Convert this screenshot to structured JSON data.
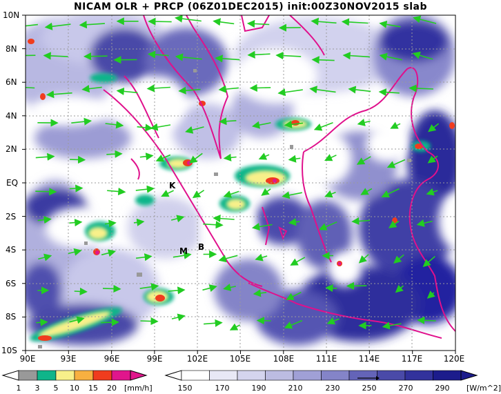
{
  "title": "NICAM OLR + PRCP (06Z01DEC2015) init:00Z30NOV2015 slab",
  "map": {
    "lon_range": [
      90,
      120
    ],
    "lat_range": [
      -10,
      10
    ],
    "x_ticks": [
      "90E",
      "93E",
      "96E",
      "99E",
      "102E",
      "105E",
      "108E",
      "111E",
      "114E",
      "117E",
      "120E"
    ],
    "y_ticks": [
      "10N",
      "8N",
      "6N",
      "4N",
      "2N",
      "EQ",
      "2S",
      "4S",
      "6S",
      "8S",
      "10S"
    ],
    "place_labels": [
      "K",
      "M",
      "B"
    ],
    "colors": {
      "olr_light": "#e6e6f5",
      "olr_mid": "#8080c8",
      "olr_dark": "#2a2a9a",
      "coast": "#e0108c",
      "wind": "#22cc22",
      "grid": "#9a9a9a"
    }
  },
  "precip_colorbar": {
    "labels": [
      "1",
      "3",
      "5",
      "10",
      "15",
      "20"
    ],
    "unit": "[mm/h]",
    "colors": [
      "#999999",
      "#0fb58a",
      "#f8f08a",
      "#f8b040",
      "#f03c1e",
      "#e0168c"
    ]
  },
  "olr_colorbar": {
    "labels": [
      "150",
      "170",
      "190",
      "210",
      "230",
      "250",
      "270",
      "290"
    ],
    "unit": "[W/m^2]",
    "colors": [
      "#ffffff",
      "#e8e8f6",
      "#d4d4ee",
      "#bcbce2",
      "#a0a0d6",
      "#8484c8",
      "#6464b8",
      "#4a4aa8",
      "#32329c",
      "#1c1c8c"
    ]
  }
}
